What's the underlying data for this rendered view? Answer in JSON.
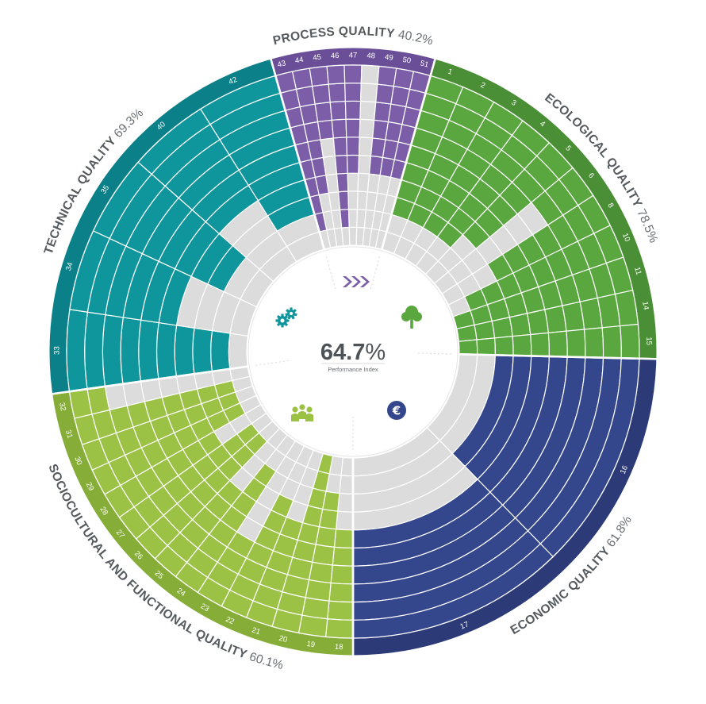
{
  "center": {
    "value": "64.7",
    "unit": "%",
    "label": "Performance Index"
  },
  "chart_data": {
    "type": "radial-bar",
    "title": "",
    "rings": 10,
    "categories": [
      {
        "id": "process",
        "name": "PROCESS QUALITY",
        "percent": "40.2%",
        "color": "#7b5ea7",
        "dark": "#6a4f98",
        "icon": "chevrons-icon",
        "criteria": [
          {
            "label": "43",
            "value": 9
          },
          {
            "label": "44",
            "value": 7
          },
          {
            "label": "45",
            "value": 4
          },
          {
            "label": "46",
            "value": 9
          },
          {
            "label": "47",
            "value": 6
          },
          {
            "label": "48",
            "value": 0
          },
          {
            "label": "49",
            "value": 6
          },
          {
            "label": "50",
            "value": 6
          },
          {
            "label": "51",
            "value": 6
          }
        ]
      },
      {
        "id": "ecological",
        "name": "ECOLOGICAL QUALITY",
        "percent": "78.5%",
        "color": "#5aa63f",
        "dark": "#4a8f35",
        "icon": "tree-icon",
        "criteria": [
          {
            "label": "1",
            "value": 8
          },
          {
            "label": "2",
            "value": 8
          },
          {
            "label": "3",
            "value": 8
          },
          {
            "label": "4",
            "value": 8
          },
          {
            "label": "5",
            "value": 7
          },
          {
            "label": "6",
            "value": 3
          },
          {
            "label": "8",
            "value": 7
          },
          {
            "label": "10",
            "value": 9
          },
          {
            "label": "11",
            "value": 10
          },
          {
            "label": "14",
            "value": 10
          },
          {
            "label": "15",
            "value": 10
          }
        ]
      },
      {
        "id": "economic",
        "name": "ECONOMIC QUALITY",
        "percent": "61.8%",
        "color": "#35478c",
        "dark": "#2c3b77",
        "icon": "euro-icon",
        "criteria": [
          {
            "label": "16",
            "value": 8
          },
          {
            "label": "17",
            "value": 6
          }
        ]
      },
      {
        "id": "sociocultural",
        "name": "SOCIOCULTURAL AND FUNCTIONAL QUALITY",
        "percent": "60.1%",
        "color": "#9cc245",
        "dark": "#86ad37",
        "icon": "people-icon",
        "criteria": [
          {
            "label": "18",
            "value": 6
          },
          {
            "label": "19",
            "value": 8
          },
          {
            "label": "20",
            "value": 10
          },
          {
            "label": "21",
            "value": 6
          },
          {
            "label": "22",
            "value": 7
          },
          {
            "label": "23",
            "value": 4
          },
          {
            "label": "24",
            "value": 8
          },
          {
            "label": "25",
            "value": 6
          },
          {
            "label": "26",
            "value": 9
          },
          {
            "label": "27",
            "value": 9
          },
          {
            "label": "28",
            "value": 7
          },
          {
            "label": "29",
            "value": 9
          },
          {
            "label": "30",
            "value": 9
          },
          {
            "label": "31",
            "value": 9
          },
          {
            "label": "32",
            "value": 2
          }
        ]
      },
      {
        "id": "technical",
        "name": "TECHNICAL QUALITY",
        "percent": "69.3%",
        "color": "#0f959c",
        "dark": "#0b8088",
        "icon": "gears-icon",
        "criteria": [
          {
            "label": "33",
            "value": 9
          },
          {
            "label": "34",
            "value": 6
          },
          {
            "label": "35",
            "value": 8
          },
          {
            "label": "40",
            "value": 6
          },
          {
            "label": "42",
            "value": 8
          }
        ]
      }
    ]
  }
}
